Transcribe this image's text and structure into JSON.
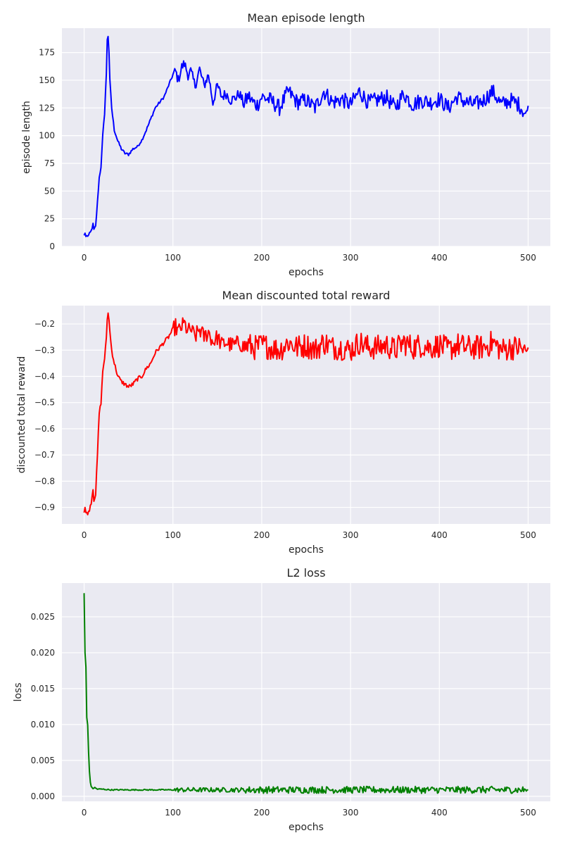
{
  "chart_data": [
    {
      "type": "line",
      "title": "Mean episode length",
      "xlabel": "epochs",
      "ylabel": "episode length",
      "xlim": [
        -25,
        525
      ],
      "ylim": [
        0,
        197
      ],
      "xticks": [
        0,
        100,
        200,
        300,
        400,
        500
      ],
      "xtick_labels": [
        "0",
        "100",
        "200",
        "300",
        "400",
        "500"
      ],
      "yticks": [
        0,
        25,
        50,
        75,
        100,
        125,
        150,
        175
      ],
      "ytick_labels": [
        "0",
        "25",
        "50",
        "75",
        "100",
        "125",
        "150",
        "175"
      ],
      "grid": true,
      "style": "seaborn-darkgrid",
      "series": [
        {
          "color": "#0000ff",
          "noise_amplitude": 1.2,
          "x": [
            0,
            1,
            2,
            5,
            8,
            10,
            11,
            13,
            15,
            17,
            19,
            21,
            23,
            25,
            26,
            27,
            28,
            29,
            31,
            34,
            38,
            42,
            46,
            50,
            55,
            60,
            65,
            70,
            75,
            80,
            85,
            90,
            95,
            100,
            103,
            106,
            110,
            113,
            117,
            120,
            125,
            130,
            135,
            140,
            145,
            150,
            155,
            160,
            165,
            170,
            175,
            180,
            185,
            190,
            195,
            200,
            210,
            220,
            230,
            240,
            250,
            260,
            270,
            280,
            290,
            300,
            310,
            320,
            330,
            340,
            350,
            360,
            370,
            380,
            390,
            400,
            410,
            420,
            430,
            440,
            450,
            460,
            470,
            480,
            490,
            498,
            500
          ],
          "values": [
            10,
            12,
            9,
            10,
            14,
            20,
            15,
            18,
            40,
            62,
            72,
            100,
            120,
            155,
            187,
            190,
            175,
            150,
            125,
            105,
            95,
            88,
            84,
            83,
            88,
            90,
            96,
            105,
            115,
            125,
            130,
            135,
            145,
            155,
            158,
            150,
            162,
            165,
            155,
            158,
            145,
            160,
            145,
            155,
            130,
            145,
            135,
            138,
            132,
            134,
            138,
            128,
            136,
            130,
            128,
            135,
            132,
            125,
            140,
            130,
            132,
            125,
            140,
            130,
            133,
            128,
            140,
            130,
            132,
            135,
            125,
            138,
            128,
            132,
            130,
            133,
            125,
            135,
            130,
            128,
            132,
            140,
            128,
            132,
            128,
            118,
            127
          ]
        }
      ]
    },
    {
      "type": "line",
      "title": "Mean discounted total reward",
      "xlabel": "epochs",
      "ylabel": "discounted total reward",
      "xlim": [
        -25,
        525
      ],
      "ylim": [
        -0.963,
        -0.13
      ],
      "xticks": [
        0,
        100,
        200,
        300,
        400,
        500
      ],
      "xtick_labels": [
        "0",
        "100",
        "200",
        "300",
        "400",
        "500"
      ],
      "yticks": [
        -0.9,
        -0.8,
        -0.7,
        -0.6,
        -0.5,
        -0.4,
        -0.3,
        -0.2
      ],
      "ytick_labels": [
        "−0.9",
        "−0.8",
        "−0.7",
        "−0.6",
        "−0.5",
        "−0.4",
        "−0.3",
        "−0.2"
      ],
      "grid": true,
      "style": "seaborn-darkgrid",
      "series": [
        {
          "color": "#ff0000",
          "noise_amplitude": 0.008,
          "x": [
            0,
            1,
            2,
            5,
            8,
            10,
            11,
            13,
            15,
            17,
            19,
            21,
            23,
            25,
            26,
            27,
            28,
            29,
            31,
            34,
            38,
            42,
            46,
            50,
            55,
            60,
            65,
            70,
            75,
            80,
            85,
            90,
            95,
            100,
            103,
            106,
            110,
            113,
            117,
            120,
            125,
            130,
            135,
            140,
            145,
            150,
            155,
            160,
            165,
            170,
            175,
            180,
            185,
            190,
            195,
            200,
            210,
            220,
            230,
            240,
            250,
            260,
            270,
            280,
            290,
            300,
            310,
            320,
            330,
            340,
            350,
            360,
            370,
            380,
            390,
            400,
            410,
            420,
            430,
            440,
            450,
            460,
            470,
            480,
            490,
            498,
            500
          ],
          "values": [
            -0.92,
            -0.9,
            -0.92,
            -0.92,
            -0.88,
            -0.83,
            -0.87,
            -0.85,
            -0.7,
            -0.54,
            -0.5,
            -0.38,
            -0.33,
            -0.26,
            -0.18,
            -0.16,
            -0.18,
            -0.23,
            -0.3,
            -0.35,
            -0.4,
            -0.42,
            -0.43,
            -0.44,
            -0.43,
            -0.41,
            -0.4,
            -0.37,
            -0.35,
            -0.31,
            -0.29,
            -0.27,
            -0.25,
            -0.22,
            -0.21,
            -0.23,
            -0.21,
            -0.2,
            -0.23,
            -0.22,
            -0.25,
            -0.22,
            -0.25,
            -0.23,
            -0.27,
            -0.25,
            -0.28,
            -0.27,
            -0.28,
            -0.28,
            -0.27,
            -0.29,
            -0.28,
            -0.29,
            -0.29,
            -0.28,
            -0.29,
            -0.3,
            -0.27,
            -0.29,
            -0.28,
            -0.3,
            -0.27,
            -0.29,
            -0.29,
            -0.3,
            -0.27,
            -0.29,
            -0.29,
            -0.28,
            -0.3,
            -0.27,
            -0.29,
            -0.28,
            -0.29,
            -0.28,
            -0.3,
            -0.28,
            -0.29,
            -0.29,
            -0.29,
            -0.27,
            -0.3,
            -0.29,
            -0.29,
            -0.31,
            -0.29
          ]
        }
      ]
    },
    {
      "type": "line",
      "title": "L2 loss",
      "xlabel": "epochs",
      "ylabel": "loss",
      "xlim": [
        -25,
        525
      ],
      "ylim": [
        -0.0007,
        0.0297
      ],
      "xticks": [
        0,
        100,
        200,
        300,
        400,
        500
      ],
      "xtick_labels": [
        "0",
        "100",
        "200",
        "300",
        "400",
        "500"
      ],
      "yticks": [
        0.0,
        0.005,
        0.01,
        0.015,
        0.02,
        0.025
      ],
      "ytick_labels": [
        "0.000",
        "0.005",
        "0.010",
        "0.015",
        "0.020",
        "0.025"
      ],
      "grid": true,
      "style": "seaborn-darkgrid",
      "series": [
        {
          "color": "#008000",
          "noise_amplitude": 8e-05,
          "x": [
            0,
            1,
            2,
            3,
            4,
            5,
            6,
            7,
            8,
            10,
            12,
            15,
            20,
            30,
            50,
            100,
            150,
            200,
            250,
            300,
            350,
            400,
            450,
            500
          ],
          "values": [
            0.0283,
            0.02,
            0.018,
            0.011,
            0.01,
            0.006,
            0.0035,
            0.002,
            0.0013,
            0.0011,
            0.0012,
            0.001,
            0.001,
            0.0009,
            0.0009,
            0.0009,
            0.0009,
            0.0009,
            0.0009,
            0.0009,
            0.0009,
            0.0009,
            0.0009,
            0.0009
          ]
        }
      ]
    }
  ]
}
